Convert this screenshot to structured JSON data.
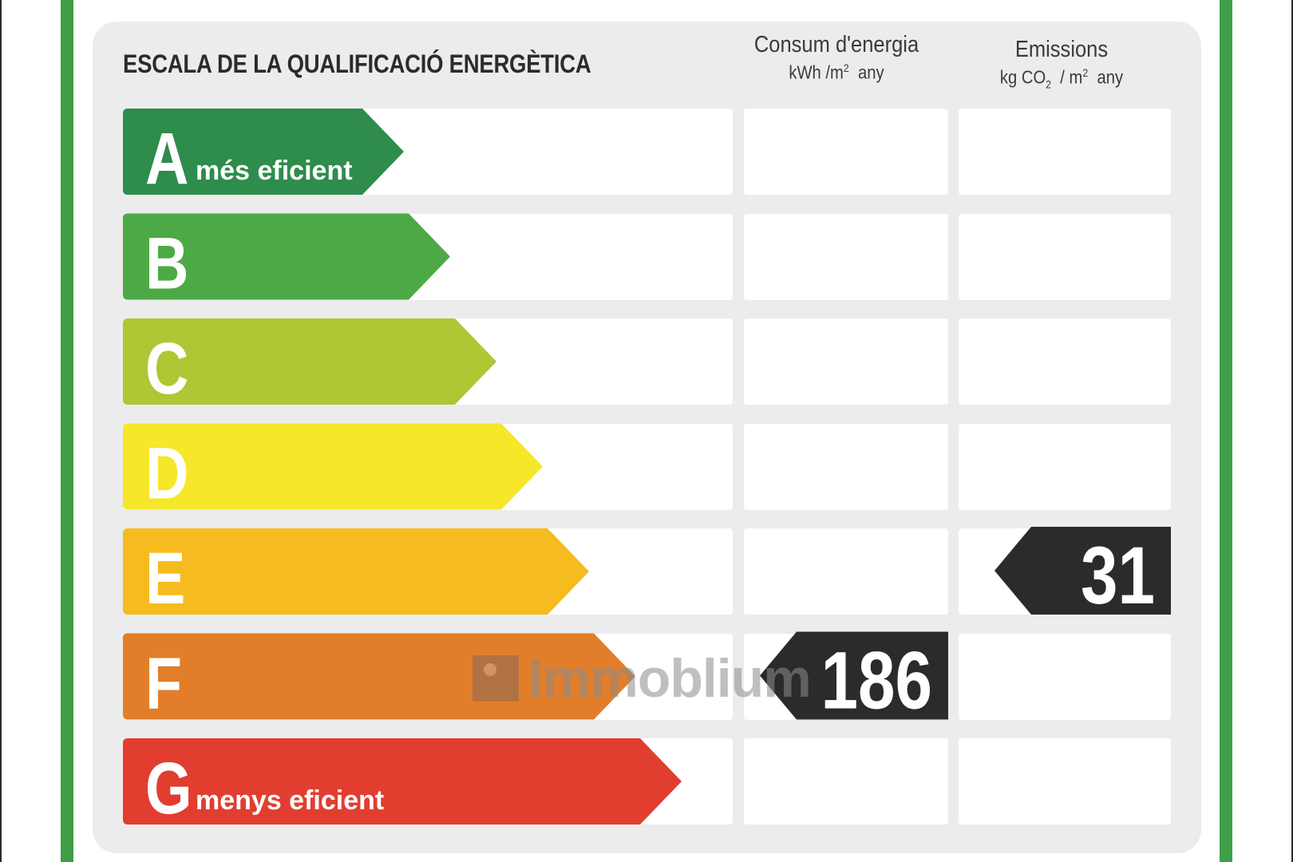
{
  "title": "ESCALA DE LA QUALIFICACIÓ ENERGÈTICA",
  "columns": {
    "energy": {
      "title": "Consum d'energia",
      "unit_main": "kWh /m",
      "unit_sup": "2",
      "unit_tail": "any"
    },
    "emissions": {
      "title": "Emissions",
      "unit_a": "kg CO",
      "unit_sub": "2",
      "unit_b": "/ m",
      "unit_sup": "2",
      "unit_tail": "any"
    }
  },
  "classes": [
    {
      "letter": "A",
      "label": "més eficient",
      "color": "#2e8c4c"
    },
    {
      "letter": "B",
      "label": "",
      "color": "#4da946"
    },
    {
      "letter": "C",
      "label": "",
      "color": "#aec734"
    },
    {
      "letter": "D",
      "label": "",
      "color": "#f6e72a"
    },
    {
      "letter": "E",
      "label": "",
      "color": "#f5bb1f"
    },
    {
      "letter": "F",
      "label": "",
      "color": "#e27e2a"
    },
    {
      "letter": "G",
      "label": "menys eficient",
      "color": "#e13e30"
    }
  ],
  "rating": {
    "energy": {
      "value": "186",
      "class": "F"
    },
    "emissions": {
      "value": "31",
      "class": "E"
    },
    "marker_color": "#2b2b2b"
  },
  "watermark": {
    "text": "Immoblium"
  }
}
